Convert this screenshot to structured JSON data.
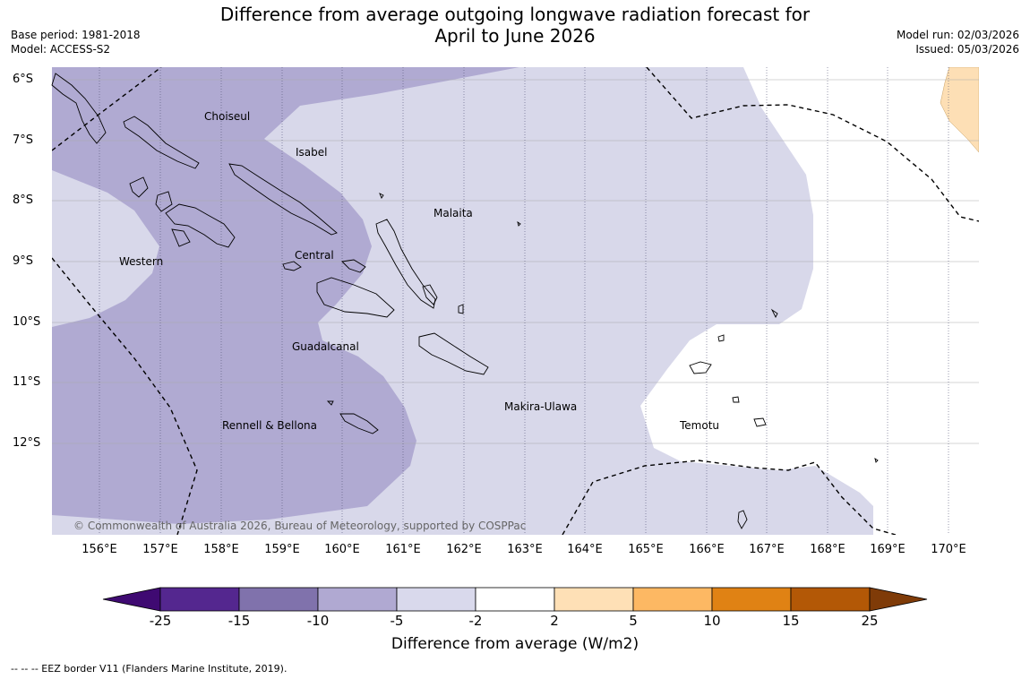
{
  "title_line1": "Difference from average outgoing longwave radiation forecast for",
  "title_line2": "April to June 2026",
  "meta_left": {
    "base_period": "Base period: 1981-2018",
    "model": "Model: ACCESS-S2"
  },
  "meta_right": {
    "model_run": "Model run: 02/03/2026",
    "issued": "Issued: 05/03/2026"
  },
  "latitudes": [
    "6°S",
    "7°S",
    "8°S",
    "9°S",
    "10°S",
    "11°S",
    "12°S"
  ],
  "longitudes": [
    "156°E",
    "157°E",
    "158°E",
    "159°E",
    "160°E",
    "161°E",
    "162°E",
    "163°E",
    "164°E",
    "165°E",
    "166°E",
    "167°E",
    "168°E",
    "169°E",
    "170°E"
  ],
  "regions": {
    "choiseul": "Choiseul",
    "isabel": "Isabel",
    "malaita": "Malaita",
    "western": "Western",
    "central": "Central",
    "guadalcanal": "Guadalcanal",
    "makira": "Makira-Ulawa",
    "rennell": "Rennell & Bellona",
    "temotu": "Temotu"
  },
  "copyright": "© Commonwealth of Australia 2026, Bureau of Meteorology, supported by COSPPac",
  "colorbar": {
    "ticks": [
      "-25",
      "-15",
      "-10",
      "-5",
      "-2",
      "2",
      "5",
      "10",
      "15",
      "25"
    ],
    "colors": [
      "#3f0a72",
      "#54278f",
      "#8072ac",
      "#b0a9d2",
      "#d9d9ec",
      "#ffffff",
      "#fee0b6",
      "#fdb863",
      "#e08214",
      "#b35806",
      "#7f3b08"
    ],
    "label": "Difference from average (W/m2)"
  },
  "footer": "--  --  -- EEZ border V11 (Flanders Marine Institute, 2019)."
}
